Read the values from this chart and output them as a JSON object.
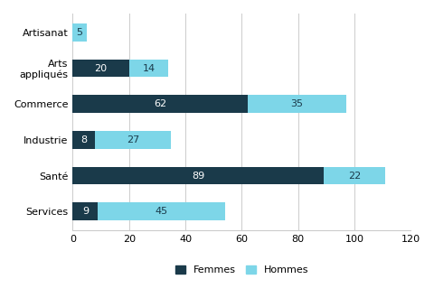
{
  "categories": [
    "Services",
    "Santé",
    "Industrie",
    "Commerce",
    "Arts\nappliqués",
    "Artisanat"
  ],
  "femmes": [
    9,
    89,
    8,
    62,
    20,
    0
  ],
  "hommes": [
    45,
    22,
    27,
    35,
    14,
    5
  ],
  "color_femmes": "#1a3a4a",
  "color_hommes": "#7dd6e8",
  "xlim": [
    0,
    120
  ],
  "xticks": [
    0,
    20,
    40,
    60,
    80,
    100,
    120
  ],
  "legend_femmes": "Femmes",
  "legend_hommes": "Hommes",
  "label_fontsize": 8,
  "tick_fontsize": 8,
  "bar_height": 0.5
}
